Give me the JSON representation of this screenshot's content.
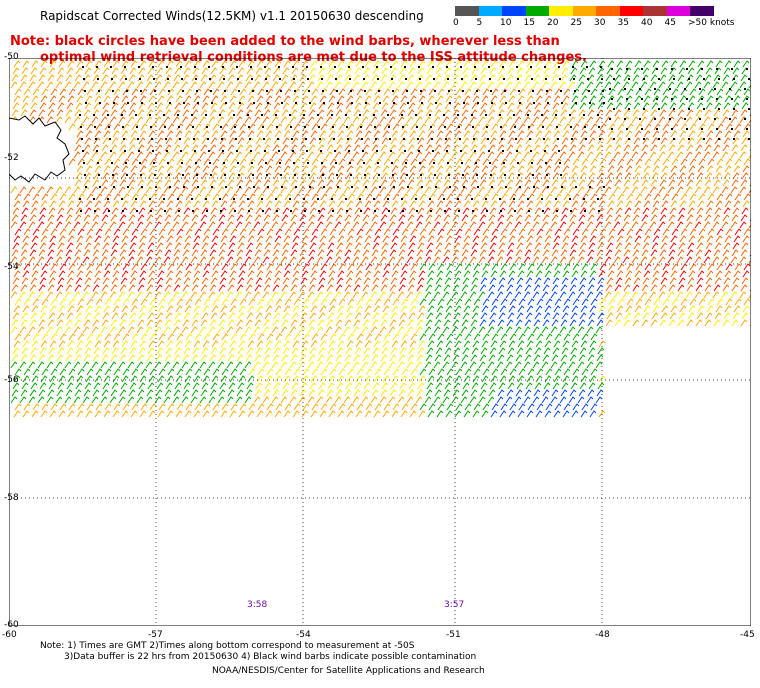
{
  "title": "Rapidscat Corrected Winds(12.5KM) v1.1 20150630 descending",
  "note_line1": "Note: black circles have been added to the wind barbs, wherever less than",
  "note_line2": "optimal wind retrieval conditions are met due to the ISS attitude changes.",
  "speed_scale": {
    "labels": [
      "0",
      "5",
      "10",
      "15",
      "20",
      "25",
      "30",
      "35",
      "40",
      "45",
      ">50 knots"
    ],
    "colors": [
      "#555555",
      "#00aaff",
      "#0044ff",
      "#00aa00",
      "#ffee00",
      "#ffaa00",
      "#ff6600",
      "#ff0000",
      "#aa3333",
      "#dd00dd",
      "#440066"
    ]
  },
  "latitude_labels": [
    "-50",
    "-52",
    "-54",
    "-56",
    "-58",
    "-60"
  ],
  "longitude_labels": [
    "-60",
    "-57",
    "-54",
    "-51",
    "-48",
    "-45"
  ],
  "pass_times": [
    "3:58",
    "3:57"
  ],
  "footnote_line1": "Note: 1) Times are GMT 2)Times along bottom correspond to measurement at -50S",
  "footnote_line2": "3)Data buffer is 22 hrs from 20150630 4) Black wind barbs indicate possible contamination",
  "credit": "NOAA/NESDIS/Center for Satellite Applications and Research"
}
